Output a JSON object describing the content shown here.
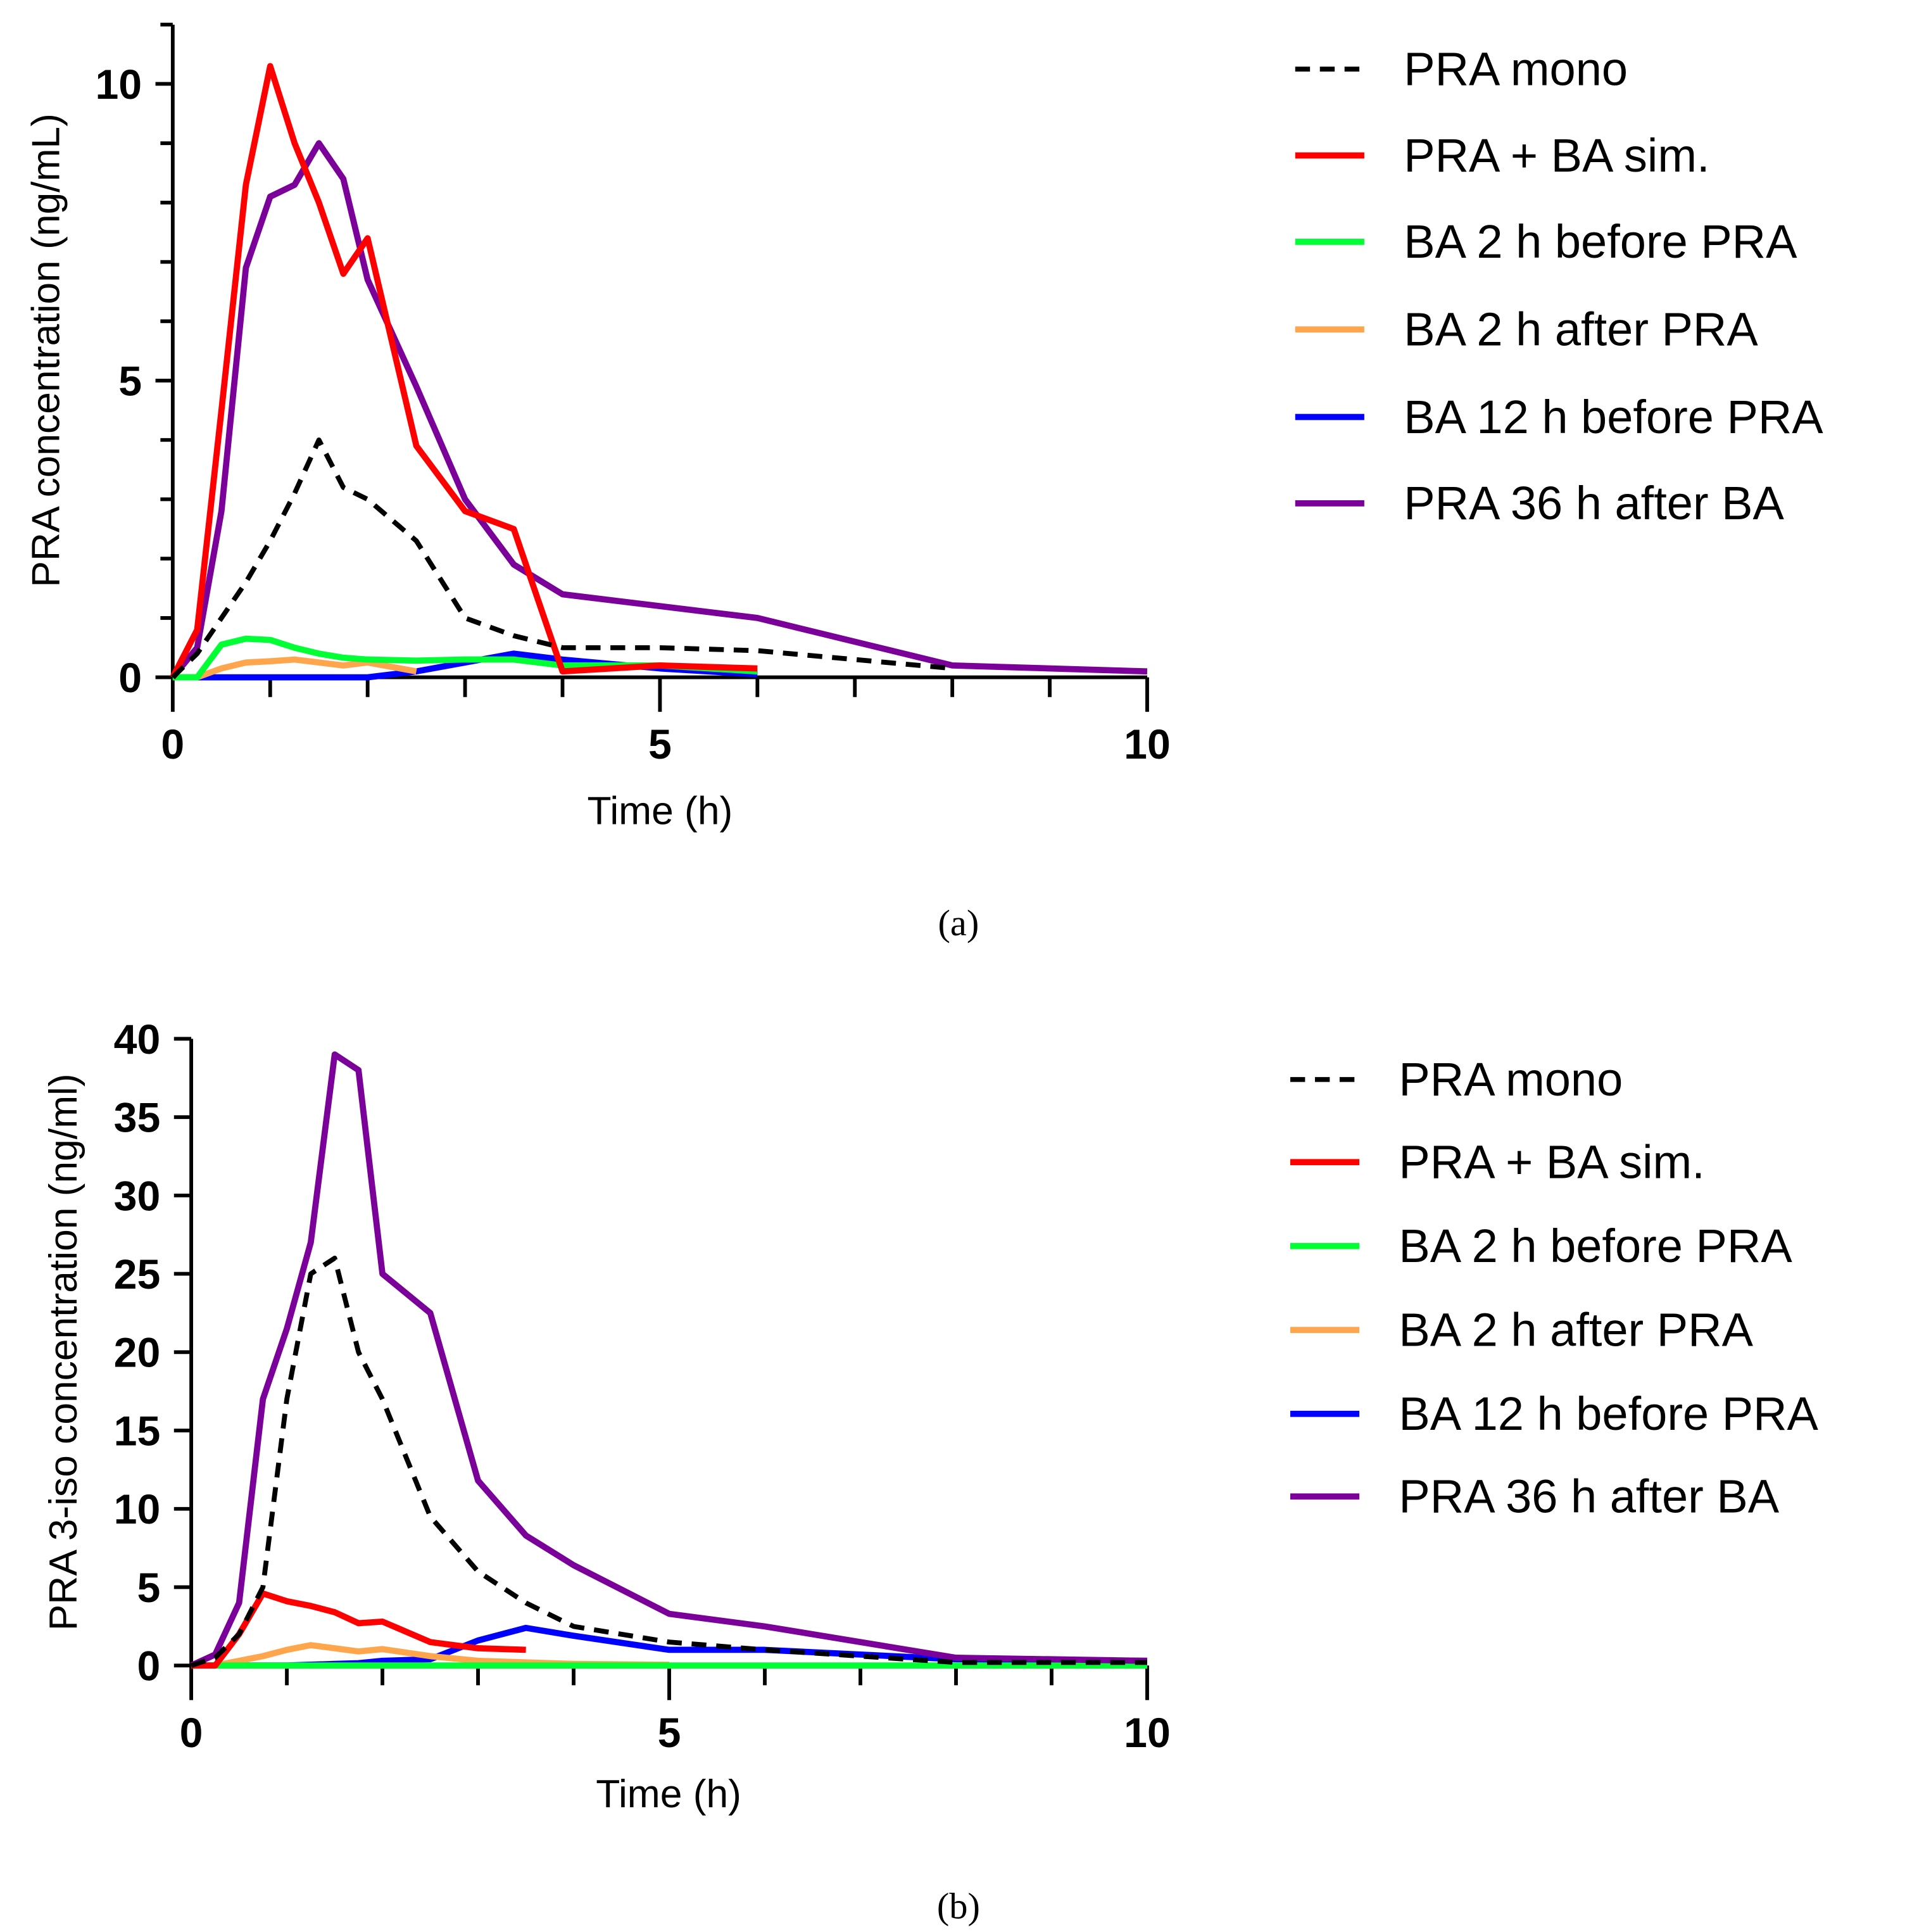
{
  "colors": {
    "PRA mono": "#000000",
    "PRA + BA sim.": "#ff0000",
    "BA 2 h before PRA": "#00ff33",
    "BA 2 h after PRA": "#ffa64d",
    "BA 12 h before PRA": "#0000ff",
    "PRA 36 h after BA": "#7a0099"
  },
  "chart_data": [
    {
      "type": "line",
      "caption": "(a)",
      "xlabel": "Time (h)",
      "ylabel": "PRA concentration (ng/mL)",
      "xlim": [
        0,
        10
      ],
      "ylim": [
        0,
        11
      ],
      "xticks": [
        "0",
        "5",
        "10"
      ],
      "yticks": [
        "0",
        "5",
        "10"
      ],
      "legend": "right",
      "series": [
        {
          "name": "PRA mono",
          "dashed": true,
          "x": [
            0,
            0.25,
            0.5,
            0.75,
            1,
            1.25,
            1.5,
            1.75,
            2,
            2.5,
            3,
            3.5,
            4,
            5,
            6,
            8
          ],
          "y": [
            0,
            0.4,
            1,
            1.6,
            2.3,
            3.1,
            4,
            3.2,
            3,
            2.3,
            1,
            0.7,
            0.5,
            0.5,
            0.45,
            0.15
          ]
        },
        {
          "name": "PRA + BA sim.",
          "x": [
            0,
            0.25,
            0.5,
            0.75,
            1,
            1.25,
            1.5,
            1.75,
            2,
            2.5,
            3,
            3.5,
            4,
            5,
            6
          ],
          "y": [
            0,
            0.8,
            4.5,
            8.3,
            10.3,
            9,
            8,
            6.8,
            7.4,
            3.9,
            2.8,
            2.5,
            0.1,
            0.2,
            0.15
          ]
        },
        {
          "name": "BA 2 h before PRA",
          "x": [
            0,
            0.25,
            0.5,
            0.75,
            1,
            1.25,
            1.5,
            1.75,
            2,
            2.5,
            3,
            3.5,
            4,
            5,
            6
          ],
          "y": [
            0,
            0,
            0.55,
            0.65,
            0.63,
            0.5,
            0.4,
            0.33,
            0.3,
            0.28,
            0.3,
            0.3,
            0.2,
            0.2,
            0.1
          ]
        },
        {
          "name": "BA 2 h after PRA",
          "x": [
            0,
            0.25,
            0.5,
            0.75,
            1,
            1.25,
            1.5,
            1.75,
            2,
            2.5
          ],
          "y": [
            0,
            0,
            0.15,
            0.25,
            0.27,
            0.3,
            0.25,
            0.2,
            0.25,
            0.1
          ]
        },
        {
          "name": "BA 12 h before PRA",
          "x": [
            0,
            0.5,
            1,
            1.5,
            2,
            2.5,
            3,
            3.5,
            4,
            5,
            6
          ],
          "y": [
            0,
            0,
            0,
            0,
            0,
            0.1,
            0.25,
            0.4,
            0.3,
            0.15,
            0.05
          ]
        },
        {
          "name": "PRA 36 h after BA",
          "x": [
            0,
            0.25,
            0.5,
            0.75,
            1,
            1.25,
            1.5,
            1.75,
            2,
            2.5,
            3,
            3.5,
            4,
            5,
            6,
            8,
            10
          ],
          "y": [
            0,
            0.5,
            2.8,
            6.9,
            8.1,
            8.3,
            9,
            8.4,
            6.7,
            4.9,
            3,
            1.9,
            1.4,
            1.2,
            1,
            0.2,
            0.1
          ]
        }
      ]
    },
    {
      "type": "line",
      "caption": "(b)",
      "xlabel": "Time (h)",
      "ylabel": "PRA 3-iso concentration (ng/ml)",
      "xlim": [
        0,
        10
      ],
      "ylim": [
        0,
        40
      ],
      "xticks": [
        "0",
        "5",
        "10"
      ],
      "yticks": [
        "0",
        "5",
        "10",
        "15",
        "20",
        "25",
        "30",
        "35",
        "40"
      ],
      "legend": "right",
      "series": [
        {
          "name": "PRA mono",
          "dashed": true,
          "x": [
            0,
            0.25,
            0.5,
            0.75,
            1,
            1.25,
            1.5,
            1.75,
            2,
            2.5,
            3,
            3.5,
            4,
            5,
            6,
            8,
            10
          ],
          "y": [
            0,
            0.5,
            2,
            5,
            17,
            25,
            26,
            20,
            17,
            9.5,
            6,
            4,
            2.5,
            1.5,
            1,
            0.2,
            0.2
          ]
        },
        {
          "name": "PRA + BA sim.",
          "x": [
            0,
            0.25,
            0.5,
            0.75,
            1,
            1.25,
            1.5,
            1.75,
            2,
            2.5,
            3,
            3.5
          ],
          "y": [
            0,
            0,
            2,
            4.6,
            4.1,
            3.8,
            3.4,
            2.7,
            2.8,
            1.5,
            1.1,
            1
          ]
        },
        {
          "name": "BA 2 h before PRA",
          "x": [
            0,
            10
          ],
          "y": [
            0,
            0
          ]
        },
        {
          "name": "BA 2 h after PRA",
          "x": [
            0,
            0.25,
            0.5,
            0.75,
            1,
            1.25,
            1.5,
            1.75,
            2,
            2.5,
            3,
            3.5,
            4,
            5
          ],
          "y": [
            0,
            0,
            0.3,
            0.6,
            1,
            1.3,
            1.1,
            0.9,
            1.05,
            0.6,
            0.3,
            0.2,
            0.1,
            0.05
          ]
        },
        {
          "name": "BA 12 h before PRA",
          "x": [
            0,
            1,
            1.5,
            1.75,
            2,
            2.5,
            3,
            3.5,
            4,
            5,
            6,
            8,
            10
          ],
          "y": [
            0,
            0,
            0.1,
            0.15,
            0.3,
            0.4,
            1.6,
            2.4,
            1.9,
            1,
            1,
            0.4,
            0.3
          ]
        },
        {
          "name": "PRA 36 h after BA",
          "x": [
            0,
            0.25,
            0.5,
            0.75,
            1,
            1.25,
            1.5,
            1.75,
            2,
            2.5,
            3,
            3.5,
            4,
            5,
            6,
            8,
            10
          ],
          "y": [
            0,
            0.7,
            4,
            17,
            21.5,
            27,
            39,
            38,
            25,
            22.5,
            11.8,
            8.3,
            6.4,
            3.3,
            2.5,
            0.5,
            0.3
          ]
        }
      ]
    }
  ]
}
